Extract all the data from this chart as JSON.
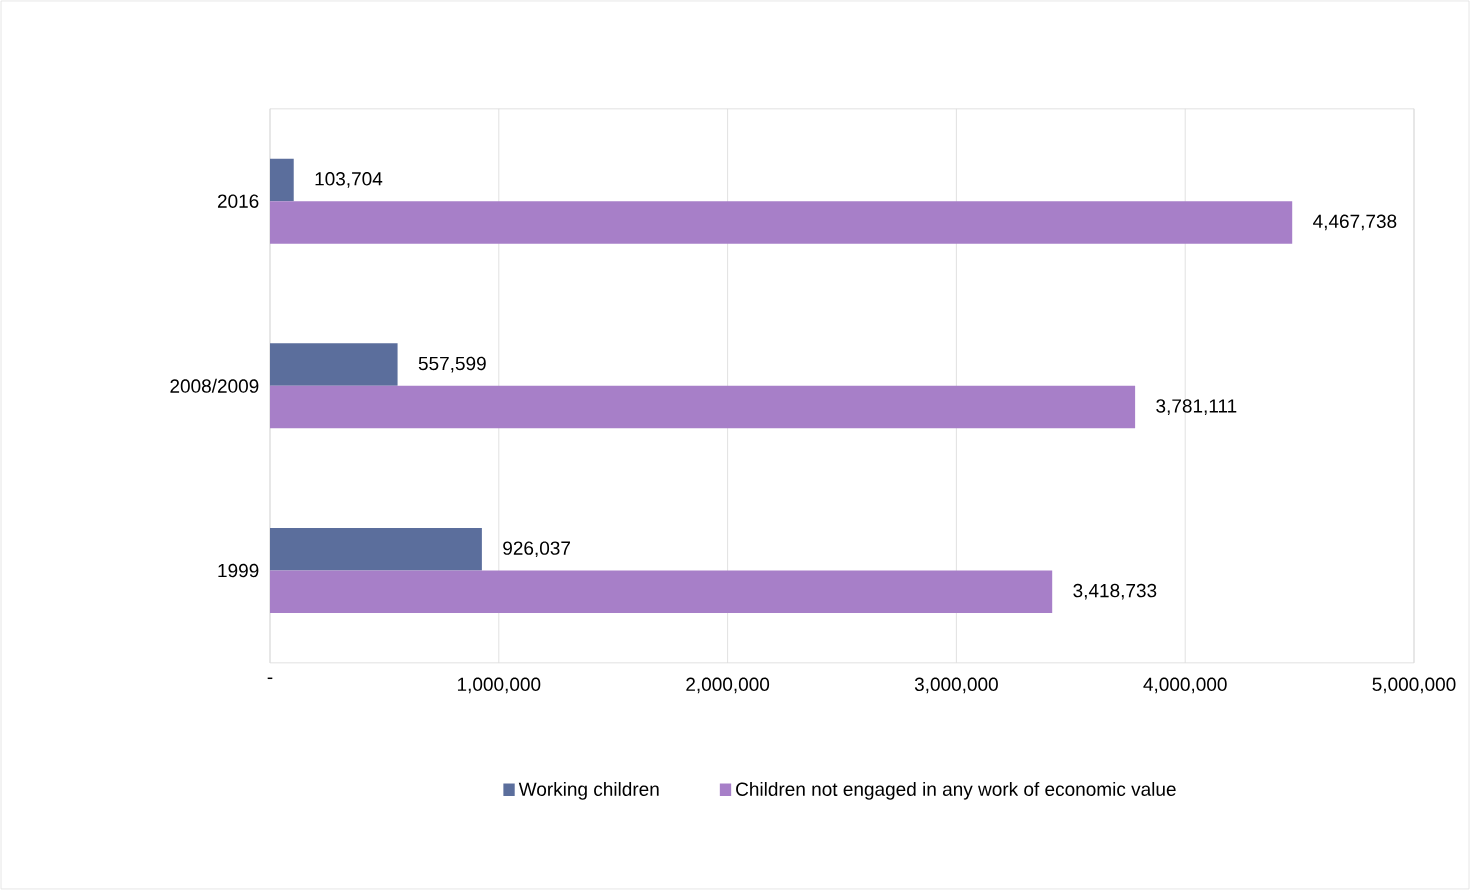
{
  "chart_data": {
    "type": "bar",
    "orientation": "horizontal",
    "categories": [
      "2016",
      "2008/2009",
      "1999"
    ],
    "series": [
      {
        "name": "Working children",
        "color": "#5b6e9c",
        "values": [
          103704,
          557599,
          926037
        ],
        "value_labels": [
          "103,704",
          "557,599",
          "926,037"
        ]
      },
      {
        "name": "Children not engaged in any work of economic value",
        "color": "#a77fc8",
        "values": [
          4467738,
          3781111,
          3418733
        ],
        "value_labels": [
          "4,467,738",
          "3,781,111",
          "3,418,733"
        ]
      }
    ],
    "xlim": [
      0,
      5000000
    ],
    "xticks": [
      {
        "value": 0,
        "label": "-"
      },
      {
        "value": 1000000,
        "label": "1,000,000"
      },
      {
        "value": 2000000,
        "label": "2,000,000"
      },
      {
        "value": 3000000,
        "label": "3,000,000"
      },
      {
        "value": 4000000,
        "label": "4,000,000"
      },
      {
        "value": 5000000,
        "label": "5,000,000"
      }
    ],
    "grid": "x",
    "legend": "bottom"
  }
}
